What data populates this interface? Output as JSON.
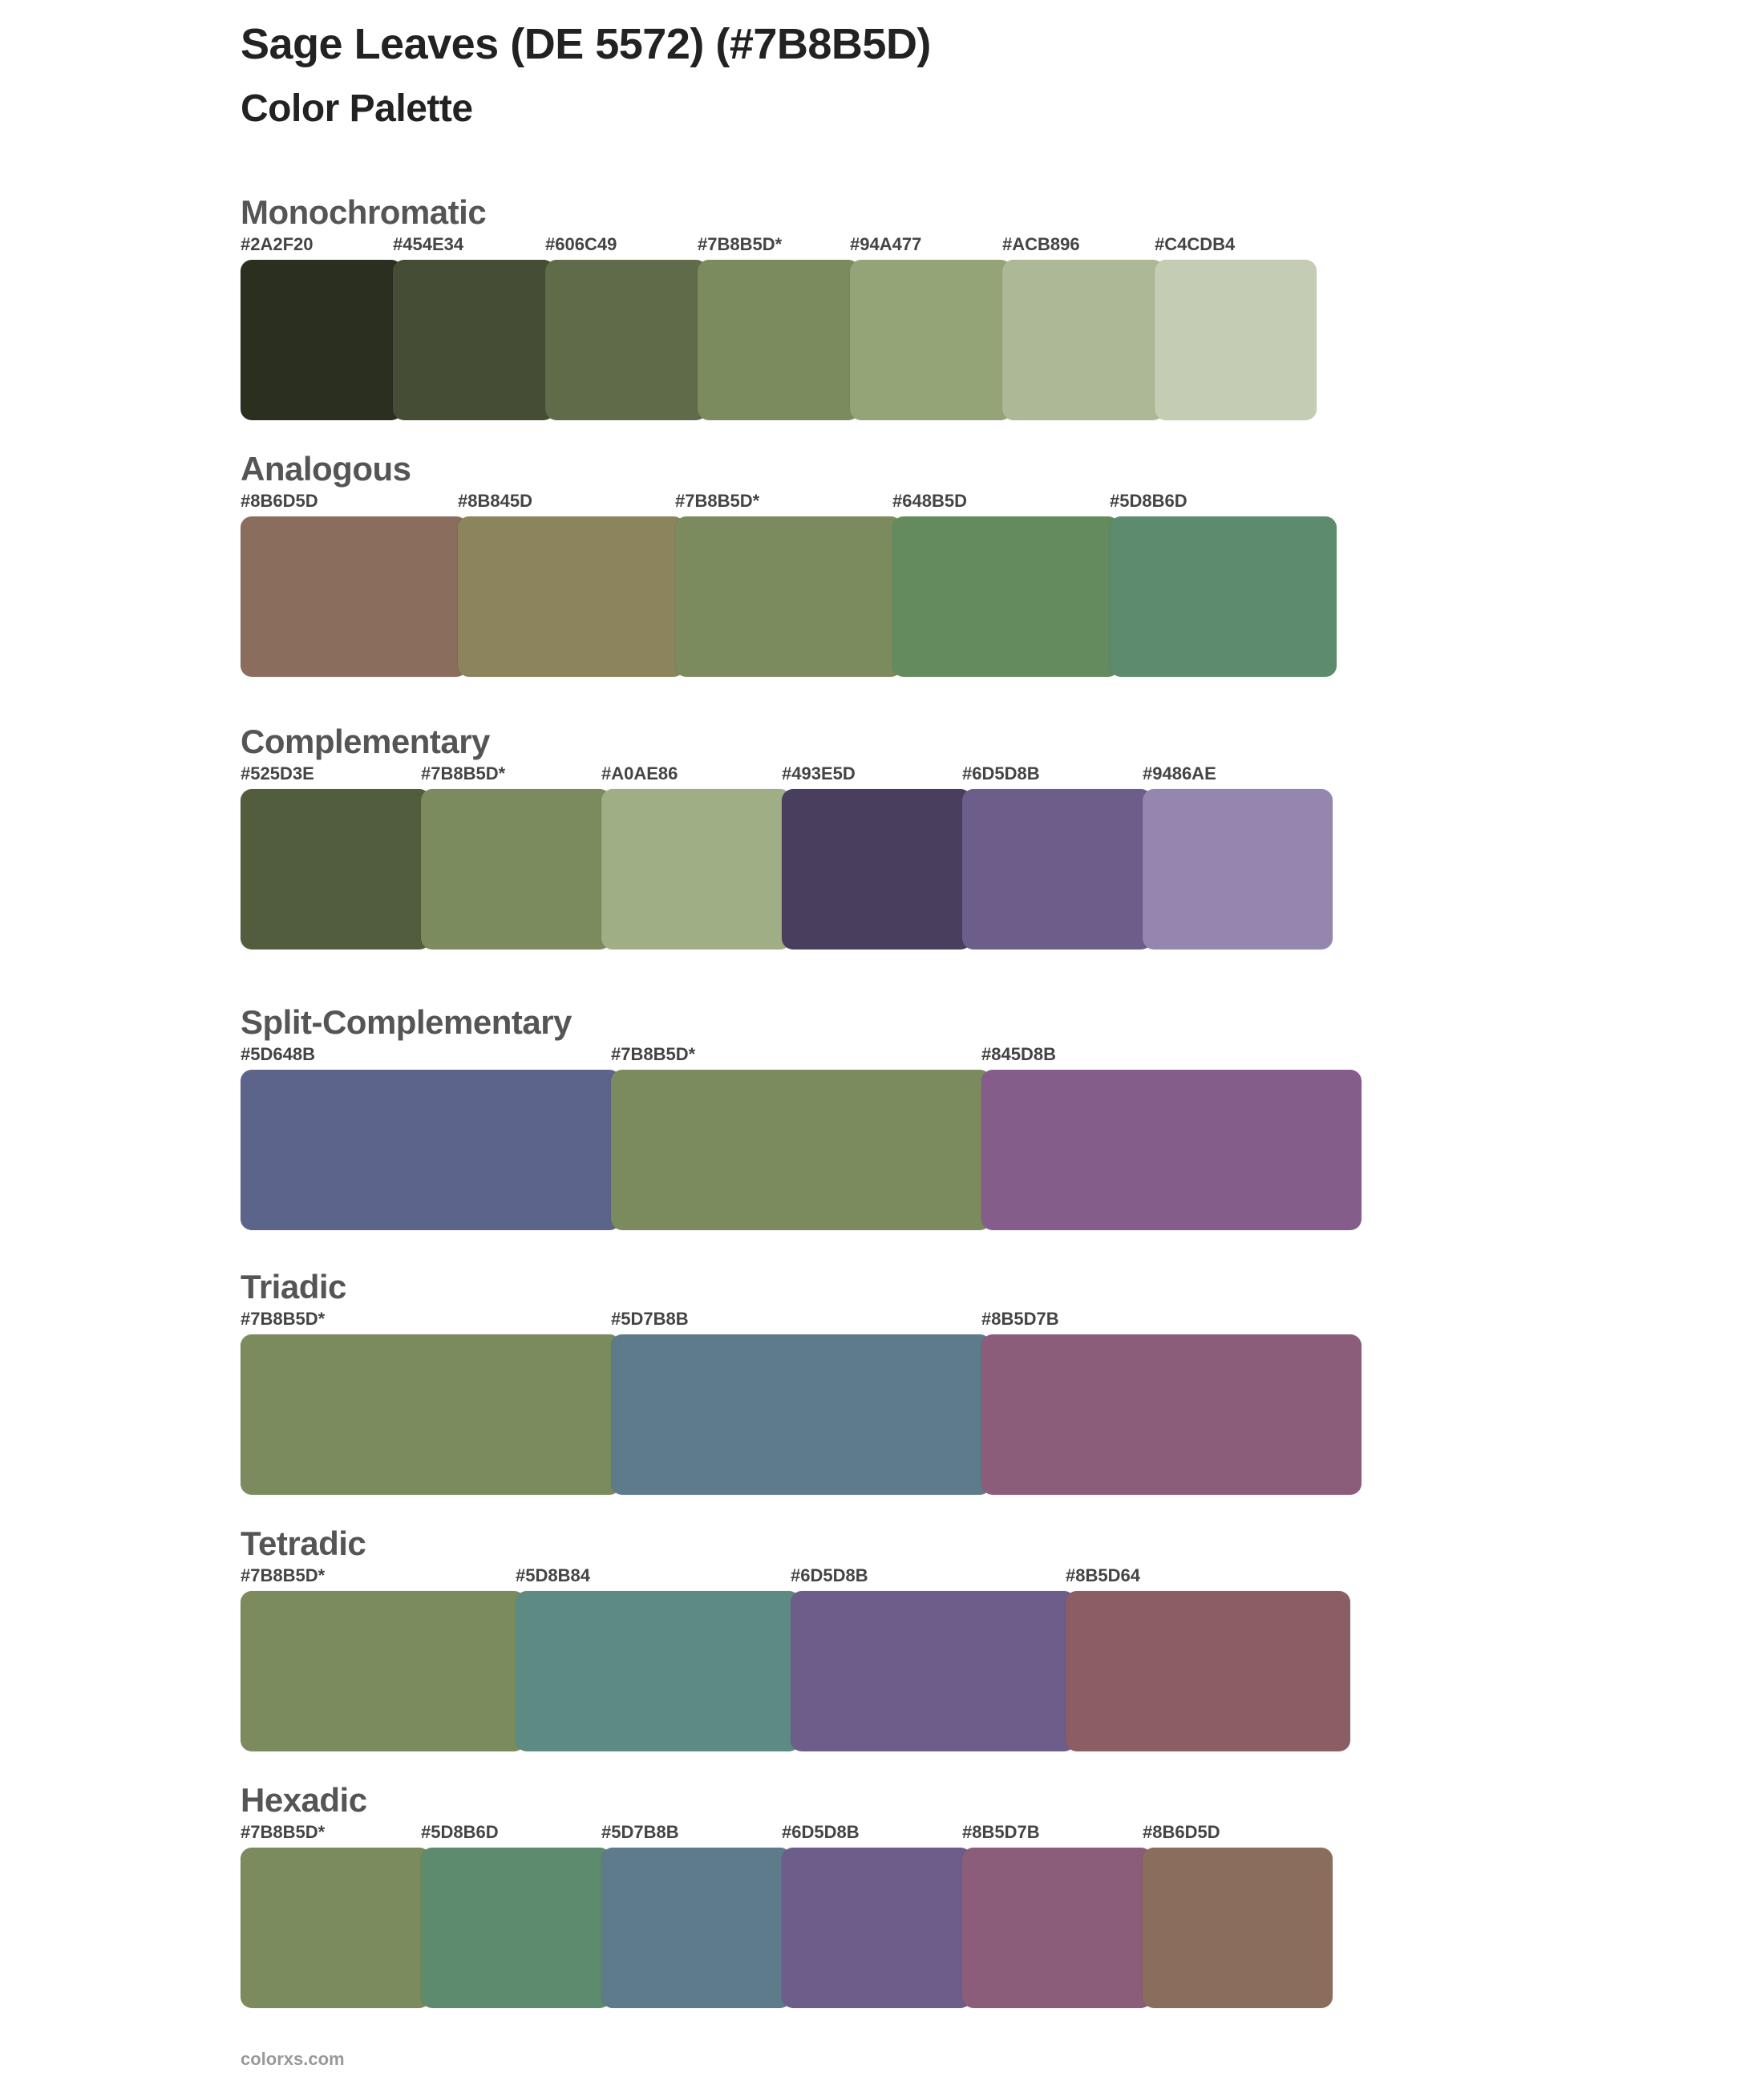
{
  "header": {
    "title": "Sage Leaves (DE 5572) (#7B8B5D)",
    "subtitle": "Color Palette"
  },
  "sections": [
    {
      "name": "Monochromatic",
      "colors": [
        {
          "label": "#2A2F20",
          "hex": "#2A2F20"
        },
        {
          "label": "#454E34",
          "hex": "#454E34"
        },
        {
          "label": "#606C49",
          "hex": "#606C49"
        },
        {
          "label": "#7B8B5D*",
          "hex": "#7B8B5D"
        },
        {
          "label": "#94A477",
          "hex": "#94A477"
        },
        {
          "label": "#ACB896",
          "hex": "#ACB896"
        },
        {
          "label": "#C4CDB4",
          "hex": "#C4CDB4"
        }
      ]
    },
    {
      "name": "Analogous",
      "colors": [
        {
          "label": "#8B6D5D",
          "hex": "#8B6D5D"
        },
        {
          "label": "#8B845D",
          "hex": "#8B845D"
        },
        {
          "label": "#7B8B5D*",
          "hex": "#7B8B5D"
        },
        {
          "label": "#648B5D",
          "hex": "#648B5D"
        },
        {
          "label": "#5D8B6D",
          "hex": "#5D8B6D"
        }
      ]
    },
    {
      "name": "Complementary",
      "colors": [
        {
          "label": "#525D3E",
          "hex": "#525D3E"
        },
        {
          "label": "#7B8B5D*",
          "hex": "#7B8B5D"
        },
        {
          "label": "#A0AE86",
          "hex": "#A0AE86"
        },
        {
          "label": "#493E5D",
          "hex": "#493E5D"
        },
        {
          "label": "#6D5D8B",
          "hex": "#6D5D8B"
        },
        {
          "label": "#9486AE",
          "hex": "#9486AE"
        }
      ]
    },
    {
      "name": "Split-Complementary",
      "colors": [
        {
          "label": "#5D648B",
          "hex": "#5D648B"
        },
        {
          "label": "#7B8B5D*",
          "hex": "#7B8B5D"
        },
        {
          "label": "#845D8B",
          "hex": "#845D8B"
        }
      ]
    },
    {
      "name": "Triadic",
      "colors": [
        {
          "label": "#7B8B5D*",
          "hex": "#7B8B5D"
        },
        {
          "label": "#5D7B8B",
          "hex": "#5D7B8B"
        },
        {
          "label": "#8B5D7B",
          "hex": "#8B5D7B"
        }
      ]
    },
    {
      "name": "Tetradic",
      "colors": [
        {
          "label": "#7B8B5D*",
          "hex": "#7B8B5D"
        },
        {
          "label": "#5D8B84",
          "hex": "#5D8B84"
        },
        {
          "label": "#6D5D8B",
          "hex": "#6D5D8B"
        },
        {
          "label": "#8B5D64",
          "hex": "#8B5D64"
        }
      ]
    },
    {
      "name": "Hexadic",
      "colors": [
        {
          "label": "#7B8B5D*",
          "hex": "#7B8B5D"
        },
        {
          "label": "#5D8B6D",
          "hex": "#5D8B6D"
        },
        {
          "label": "#5D7B8B",
          "hex": "#5D7B8B"
        },
        {
          "label": "#6D5D8B",
          "hex": "#6D5D8B"
        },
        {
          "label": "#8B5D7B",
          "hex": "#8B5D7B"
        },
        {
          "label": "#8B6D5D",
          "hex": "#8B6D5D"
        }
      ]
    }
  ],
  "footer": {
    "brand": "colorxs.com"
  }
}
